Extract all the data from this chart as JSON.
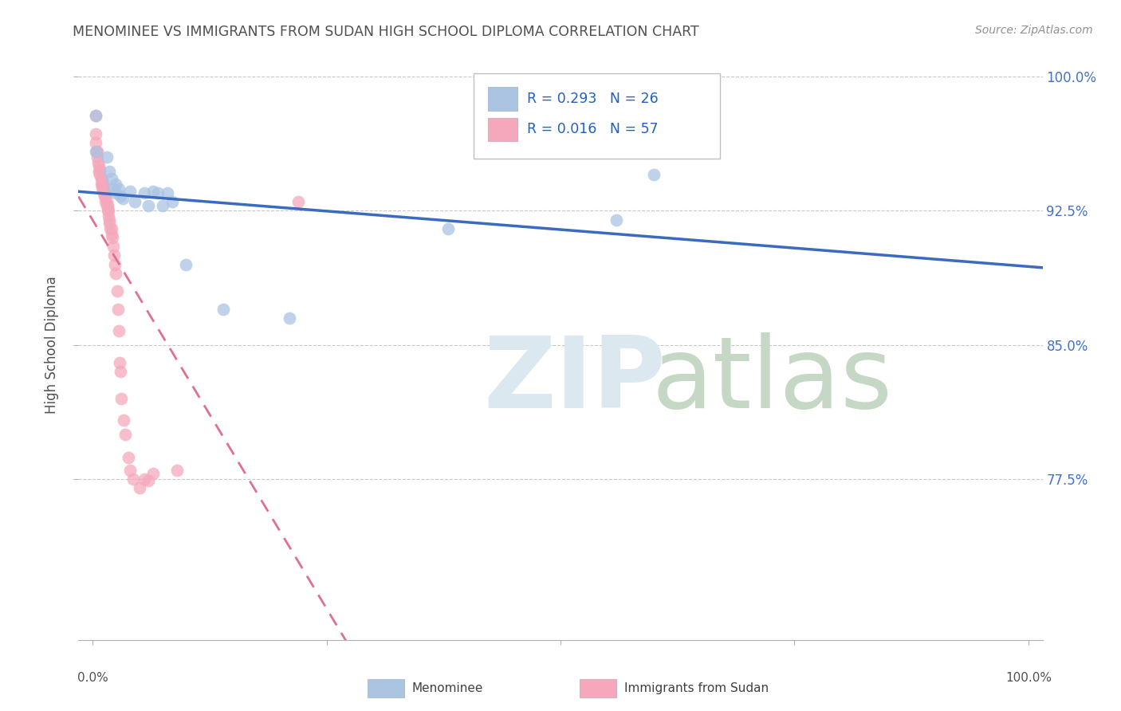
{
  "title": "MENOMINEE VS IMMIGRANTS FROM SUDAN HIGH SCHOOL DIPLOMA CORRELATION CHART",
  "source": "Source: ZipAtlas.com",
  "ylabel": "High School Diploma",
  "ymin": 0.685,
  "ymax": 1.015,
  "xmin": -0.015,
  "xmax": 1.015,
  "menominee_R": 0.293,
  "menominee_N": 26,
  "sudan_R": 0.016,
  "sudan_N": 57,
  "menominee_color": "#aac4e2",
  "sudan_color": "#f5a8bc",
  "menominee_line_color": "#3a6bbf",
  "sudan_line_color": "#e07090",
  "watermark_zip_color": "#dce8f0",
  "watermark_atlas_color": "#c5d8c5",
  "grid_color": "#c8c8c8",
  "background_color": "#ffffff",
  "title_color": "#505050",
  "source_color": "#909090",
  "ytick_color": "#4472c4",
  "legend_R_color": "#2060c0",
  "ytick_positions": [
    0.775,
    0.85,
    0.925,
    1.0
  ],
  "ytick_labels": [
    "77.5%",
    "85.0%",
    "92.5%",
    "100.0%"
  ],
  "menominee_x": [
    0.003,
    0.003,
    0.015,
    0.018,
    0.02,
    0.022,
    0.025,
    0.025,
    0.028,
    0.03,
    0.032,
    0.04,
    0.045,
    0.055,
    0.06,
    0.065,
    0.07,
    0.075,
    0.08,
    0.085,
    0.1,
    0.14,
    0.21,
    0.38,
    0.56,
    0.6
  ],
  "menominee_y": [
    0.978,
    0.958,
    0.955,
    0.947,
    0.943,
    0.937,
    0.94,
    0.935,
    0.937,
    0.933,
    0.932,
    0.936,
    0.93,
    0.935,
    0.928,
    0.936,
    0.935,
    0.928,
    0.935,
    0.93,
    0.895,
    0.87,
    0.865,
    0.915,
    0.92,
    0.945
  ],
  "sudan_x": [
    0.003,
    0.003,
    0.003,
    0.004,
    0.005,
    0.005,
    0.006,
    0.007,
    0.007,
    0.008,
    0.008,
    0.009,
    0.009,
    0.01,
    0.01,
    0.01,
    0.011,
    0.011,
    0.012,
    0.012,
    0.013,
    0.013,
    0.014,
    0.014,
    0.015,
    0.015,
    0.016,
    0.016,
    0.017,
    0.017,
    0.018,
    0.018,
    0.019,
    0.02,
    0.02,
    0.021,
    0.022,
    0.023,
    0.024,
    0.025,
    0.026,
    0.027,
    0.028,
    0.029,
    0.03,
    0.031,
    0.033,
    0.035,
    0.038,
    0.04,
    0.043,
    0.05,
    0.055,
    0.06,
    0.065,
    0.09,
    0.22
  ],
  "sudan_y": [
    0.978,
    0.968,
    0.963,
    0.958,
    0.958,
    0.955,
    0.952,
    0.95,
    0.947,
    0.948,
    0.945,
    0.943,
    0.94,
    0.942,
    0.94,
    0.938,
    0.94,
    0.937,
    0.938,
    0.935,
    0.936,
    0.933,
    0.933,
    0.93,
    0.93,
    0.928,
    0.928,
    0.925,
    0.925,
    0.922,
    0.92,
    0.918,
    0.915,
    0.915,
    0.912,
    0.91,
    0.905,
    0.9,
    0.895,
    0.89,
    0.88,
    0.87,
    0.858,
    0.84,
    0.835,
    0.82,
    0.808,
    0.8,
    0.787,
    0.78,
    0.775,
    0.77,
    0.775,
    0.774,
    0.778,
    0.78,
    0.93
  ]
}
